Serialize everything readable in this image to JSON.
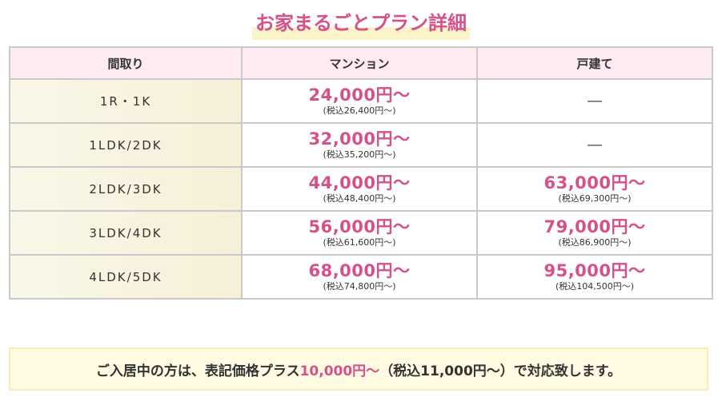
{
  "title": "お家まるごとプラン詳細",
  "table": {
    "headers": [
      "間取り",
      "マンション",
      "戸建て"
    ],
    "rows": [
      {
        "layout": "1R・1K",
        "mansion": {
          "price": "24,000円～",
          "tax": "(税込26,400円～)"
        },
        "house": {
          "dash": "―"
        }
      },
      {
        "layout": "1LDK/2DK",
        "mansion": {
          "price": "32,000円～",
          "tax": "(税込35,200円～)"
        },
        "house": {
          "dash": "―"
        }
      },
      {
        "layout": "2LDK/3DK",
        "mansion": {
          "price": "44,000円～",
          "tax": "(税込48,400円～)"
        },
        "house": {
          "price": "63,000円～",
          "tax": "(税込69,300円～)"
        }
      },
      {
        "layout": "3LDK/4DK",
        "mansion": {
          "price": "56,000円～",
          "tax": "(税込61,600円～)"
        },
        "house": {
          "price": "79,000円～",
          "tax": "(税込86,900円～)"
        }
      },
      {
        "layout": "4LDK/5DK",
        "mansion": {
          "price": "68,000円～",
          "tax": "(税込74,800円～)"
        },
        "house": {
          "price": "95,000円～",
          "tax": "(税込104,500円～)"
        }
      }
    ]
  },
  "note": {
    "before": "ご入居中の方は、表記価格プラス",
    "highlight": "10,000円～",
    "after": "（税込11,000円～）で対応致します。"
  },
  "colors": {
    "accent": "#d6508a",
    "header_bg": "#fdeaf3",
    "layout_bg": "#f7f2dc",
    "note_bg": "#fffbe3"
  }
}
